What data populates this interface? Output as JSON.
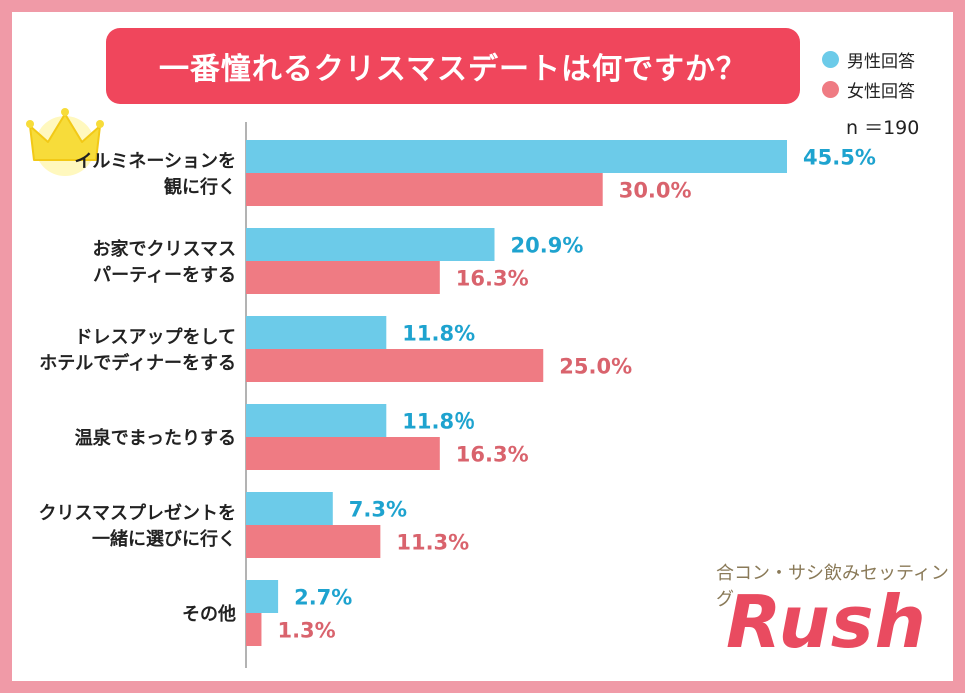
{
  "title": "一番憧れるクリスマスデートは何ですか？",
  "legend": {
    "male": "男性回答",
    "female": "女性回答"
  },
  "sample_size": "n ＝190",
  "colors": {
    "male": "#6ccbe9",
    "female": "#ef7b83",
    "male_label": "#1ea3cf",
    "female_label": "#d9636d",
    "title_bg": "#f0465c",
    "frame": "#f09aa7",
    "brand": "#e94b60"
  },
  "brand": {
    "subtitle": "合コン・サシ飲みセッティング",
    "logo": "Rush"
  },
  "chart_data": {
    "type": "bar",
    "orientation": "horizontal",
    "categories": [
      [
        "イルミネーションを",
        "観に行く"
      ],
      [
        "お家でクリスマス",
        "パーティーをする"
      ],
      [
        "ドレスアップをして",
        "ホテルでディナーをする"
      ],
      [
        "温泉でまったりする"
      ],
      [
        "クリスマスプレゼントを",
        "一緒に選びに行く"
      ],
      [
        "その他"
      ]
    ],
    "series": [
      {
        "name": "男性回答",
        "values": [
          45.5,
          20.9,
          11.8,
          11.8,
          7.3,
          2.7
        ],
        "labels": [
          "45.5%",
          "20.9%",
          "11.8%",
          "11.8％",
          "7.3%",
          "2.7%"
        ]
      },
      {
        "name": "女性回答",
        "values": [
          30.0,
          16.3,
          25.0,
          16.3,
          11.3,
          1.3
        ],
        "labels": [
          "30.0%",
          "16.3%",
          "25.0%",
          "16.3%",
          "11.3%",
          "1.3%"
        ]
      }
    ],
    "xlim": [
      0,
      50
    ],
    "grid": false,
    "legend_position": "top-right"
  }
}
